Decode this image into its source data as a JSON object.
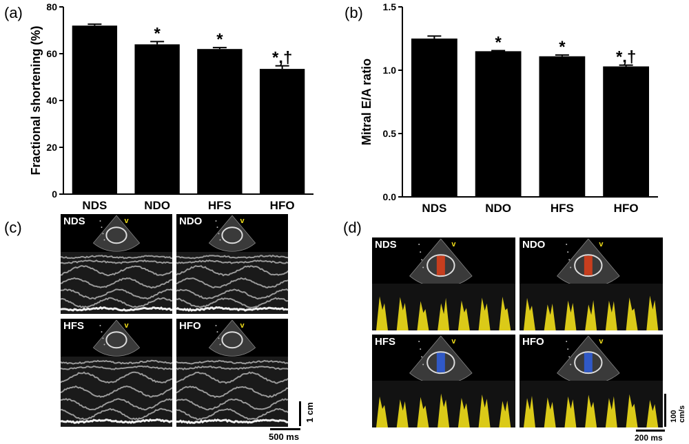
{
  "panels": {
    "a": {
      "letter": "(a)"
    },
    "b": {
      "letter": "(b)"
    },
    "c": {
      "letter": "(c)"
    },
    "d": {
      "letter": "(d)"
    }
  },
  "chart_data": [
    {
      "type": "bar",
      "panel": "a",
      "categories": [
        "NDS",
        "NDO",
        "HFS",
        "HFO"
      ],
      "values": [
        72.0,
        64.0,
        62.0,
        53.5
      ],
      "errors": [
        0.6,
        1.2,
        0.6,
        1.3
      ],
      "annotations": [
        "",
        "*",
        "*",
        "*,†"
      ],
      "title": "",
      "xlabel": "",
      "ylabel": "Fractional shortening (%)",
      "ylim": [
        0,
        80
      ],
      "yticks": [
        "0",
        "20",
        "40",
        "60",
        "80"
      ],
      "bar_color": "#000000",
      "grid": false
    },
    {
      "type": "bar",
      "panel": "b",
      "categories": [
        "NDS",
        "NDO",
        "HFS",
        "HFO"
      ],
      "values": [
        1.25,
        1.15,
        1.11,
        1.03
      ],
      "errors": [
        0.02,
        0.005,
        0.01,
        0.01
      ],
      "annotations": [
        "",
        "*",
        "*",
        "*,†"
      ],
      "title": "",
      "xlabel": "",
      "ylabel": "Mitral E/A ratio",
      "ylim": [
        0,
        1.5
      ],
      "yticks": [
        "0.0",
        "0.5",
        "1.0",
        "1.5"
      ],
      "bar_color": "#000000",
      "grid": false
    }
  ],
  "echo_c": {
    "images": [
      {
        "label": "NDS"
      },
      {
        "label": "NDO"
      },
      {
        "label": "HFS"
      },
      {
        "label": "HFO"
      }
    ],
    "scale_vertical": "1 cm",
    "scale_horizontal": "500 ms"
  },
  "echo_d": {
    "images": [
      {
        "label": "NDS"
      },
      {
        "label": "NDO"
      },
      {
        "label": "HFS"
      },
      {
        "label": "HFO"
      }
    ],
    "scale_vertical": "100 cm/s",
    "scale_horizontal": "200 ms",
    "doppler_color": "#f2df1a"
  }
}
